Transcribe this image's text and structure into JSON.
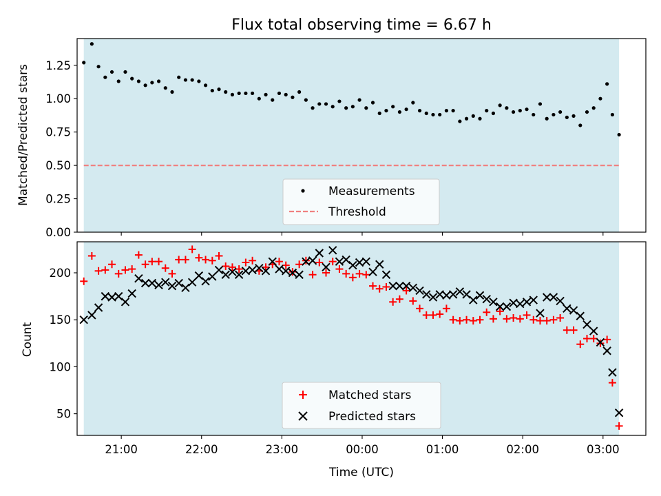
{
  "figure": {
    "title": "Flux total observing time = 6.67 h",
    "xlabel": "Time (UTC)"
  },
  "chart_data": [
    {
      "type": "scatter",
      "ylabel": "Matched/Predicted stars",
      "ylim": [
        0,
        1.45
      ],
      "yticks": [
        "0.00",
        "0.25",
        "0.50",
        "0.75",
        "1.00",
        "1.25"
      ],
      "xlim": [
        "20:27",
        "03:32"
      ],
      "xticks": [
        "21:00",
        "22:00",
        "23:00",
        "00:00",
        "01:00",
        "02:00",
        "03:00"
      ],
      "shaded_interval": [
        "20:32",
        "03:12"
      ],
      "shade_color": "#d4eaf0",
      "threshold": 0.5,
      "threshold_color": "#f08080",
      "legend": {
        "placement": "lower-center",
        "entries": [
          "Measurements",
          "Threshold"
        ]
      },
      "series": [
        {
          "name": "Measurements",
          "color": "#000000",
          "x": [
            "20:32",
            "20:38",
            "20:43",
            "20:48",
            "20:53",
            "20:58",
            "21:03",
            "21:08",
            "21:13",
            "21:18",
            "21:23",
            "21:28",
            "21:33",
            "21:38",
            "21:43",
            "21:48",
            "21:53",
            "21:58",
            "22:03",
            "22:08",
            "22:13",
            "22:18",
            "22:23",
            "22:28",
            "22:33",
            "22:38",
            "22:43",
            "22:48",
            "22:53",
            "22:58",
            "23:03",
            "23:08",
            "23:13",
            "23:18",
            "23:23",
            "23:28",
            "23:33",
            "23:38",
            "23:43",
            "23:48",
            "23:53",
            "23:58",
            "00:03",
            "00:08",
            "00:13",
            "00:18",
            "00:23",
            "00:28",
            "00:33",
            "00:38",
            "00:43",
            "00:48",
            "00:53",
            "00:58",
            "01:03",
            "01:08",
            "01:13",
            "01:18",
            "01:23",
            "01:28",
            "01:33",
            "01:38",
            "01:43",
            "01:48",
            "01:53",
            "01:58",
            "02:03",
            "02:08",
            "02:13",
            "02:18",
            "02:23",
            "02:28",
            "02:33",
            "02:38",
            "02:43",
            "02:48",
            "02:53",
            "02:58",
            "03:03",
            "03:07",
            "03:12"
          ],
          "y": [
            1.27,
            1.41,
            1.24,
            1.16,
            1.2,
            1.13,
            1.2,
            1.15,
            1.13,
            1.1,
            1.12,
            1.13,
            1.08,
            1.05,
            1.16,
            1.14,
            1.14,
            1.13,
            1.1,
            1.06,
            1.07,
            1.05,
            1.03,
            1.04,
            1.04,
            1.04,
            1.0,
            1.03,
            0.99,
            1.04,
            1.03,
            1.01,
            1.05,
            0.99,
            0.93,
            0.96,
            0.96,
            0.94,
            0.98,
            0.93,
            0.94,
            0.99,
            0.93,
            0.97,
            0.89,
            0.91,
            0.94,
            0.9,
            0.92,
            0.97,
            0.91,
            0.89,
            0.88,
            0.88,
            0.91,
            0.91,
            0.83,
            0.85,
            0.87,
            0.85,
            0.91,
            0.89,
            0.95,
            0.93,
            0.9,
            0.91,
            0.92,
            0.88,
            0.96,
            0.85,
            0.88,
            0.9,
            0.86,
            0.87,
            0.8,
            0.9,
            0.93,
            1.0,
            1.11,
            0.88,
            0.73
          ]
        }
      ]
    },
    {
      "type": "scatter",
      "ylabel": "Count",
      "ylim": [
        27,
        233
      ],
      "yticks": [
        "50",
        "100",
        "150",
        "200"
      ],
      "xlim": [
        "20:27",
        "03:32"
      ],
      "xticks": [
        "21:00",
        "22:00",
        "23:00",
        "00:00",
        "01:00",
        "02:00",
        "03:00"
      ],
      "shaded_interval": [
        "20:32",
        "03:12"
      ],
      "shade_color": "#d4eaf0",
      "legend": {
        "placement": "lower-center",
        "entries": [
          "Matched stars",
          "Predicted stars"
        ]
      },
      "series": [
        {
          "name": "Matched stars",
          "marker": "plus",
          "color": "#ff0000",
          "x": [
            "20:32",
            "20:38",
            "20:43",
            "20:48",
            "20:53",
            "20:58",
            "21:03",
            "21:08",
            "21:13",
            "21:18",
            "21:23",
            "21:28",
            "21:33",
            "21:38",
            "21:43",
            "21:48",
            "21:53",
            "21:58",
            "22:03",
            "22:08",
            "22:13",
            "22:18",
            "22:23",
            "22:28",
            "22:33",
            "22:38",
            "22:43",
            "22:48",
            "22:53",
            "22:58",
            "23:03",
            "23:08",
            "23:13",
            "23:18",
            "23:23",
            "23:28",
            "23:33",
            "23:38",
            "23:43",
            "23:48",
            "23:53",
            "23:58",
            "00:03",
            "00:08",
            "00:13",
            "00:18",
            "00:23",
            "00:28",
            "00:33",
            "00:38",
            "00:43",
            "00:48",
            "00:53",
            "00:58",
            "01:03",
            "01:08",
            "01:13",
            "01:18",
            "01:23",
            "01:28",
            "01:33",
            "01:38",
            "01:43",
            "01:48",
            "01:53",
            "01:58",
            "02:03",
            "02:08",
            "02:13",
            "02:18",
            "02:23",
            "02:28",
            "02:33",
            "02:38",
            "02:43",
            "02:48",
            "02:53",
            "02:58",
            "03:03",
            "03:07",
            "03:12"
          ],
          "y": [
            191,
            218,
            202,
            203,
            209,
            199,
            203,
            204,
            219,
            209,
            212,
            212,
            205,
            199,
            214,
            214,
            225,
            216,
            214,
            213,
            218,
            207,
            206,
            204,
            211,
            213,
            202,
            206,
            209,
            212,
            208,
            201,
            209,
            213,
            198,
            211,
            200,
            212,
            204,
            199,
            195,
            199,
            198,
            186,
            183,
            185,
            169,
            172,
            181,
            170,
            162,
            155,
            155,
            156,
            162,
            150,
            149,
            150,
            149,
            150,
            158,
            151,
            159,
            151,
            152,
            151,
            155,
            150,
            149,
            149,
            150,
            152,
            139,
            139,
            124,
            130,
            130,
            125,
            129,
            83,
            37
          ]
        },
        {
          "name": "Predicted stars",
          "marker": "x",
          "color": "#000000",
          "x": [
            "20:32",
            "20:38",
            "20:43",
            "20:48",
            "20:53",
            "20:58",
            "21:03",
            "21:08",
            "21:13",
            "21:18",
            "21:23",
            "21:28",
            "21:33",
            "21:38",
            "21:43",
            "21:48",
            "21:53",
            "21:58",
            "22:03",
            "22:08",
            "22:13",
            "22:18",
            "22:23",
            "22:28",
            "22:33",
            "22:38",
            "22:43",
            "22:48",
            "22:53",
            "22:58",
            "23:03",
            "23:08",
            "23:13",
            "23:18",
            "23:23",
            "23:28",
            "23:33",
            "23:38",
            "23:43",
            "23:48",
            "23:53",
            "23:58",
            "00:03",
            "00:08",
            "00:13",
            "00:18",
            "00:23",
            "00:28",
            "00:33",
            "00:38",
            "00:43",
            "00:48",
            "00:53",
            "00:58",
            "01:03",
            "01:08",
            "01:13",
            "01:18",
            "01:23",
            "01:28",
            "01:33",
            "01:38",
            "01:43",
            "01:48",
            "01:53",
            "01:58",
            "02:03",
            "02:08",
            "02:13",
            "02:18",
            "02:23",
            "02:28",
            "02:33",
            "02:38",
            "02:43",
            "02:48",
            "02:53",
            "02:58",
            "03:03",
            "03:07",
            "03:12"
          ],
          "y": [
            150,
            155,
            163,
            175,
            174,
            175,
            169,
            178,
            194,
            189,
            189,
            187,
            190,
            186,
            189,
            184,
            190,
            197,
            191,
            196,
            203,
            198,
            201,
            198,
            202,
            203,
            205,
            202,
            212,
            204,
            202,
            200,
            198,
            212,
            213,
            221,
            206,
            224,
            212,
            214,
            208,
            211,
            212,
            201,
            209,
            198,
            186,
            186,
            186,
            184,
            181,
            177,
            174,
            177,
            176,
            177,
            180,
            177,
            171,
            176,
            172,
            169,
            164,
            164,
            168,
            167,
            169,
            171,
            157,
            174,
            174,
            170,
            162,
            160,
            154,
            145,
            138,
            126,
            117,
            94,
            51
          ]
        }
      ]
    }
  ]
}
